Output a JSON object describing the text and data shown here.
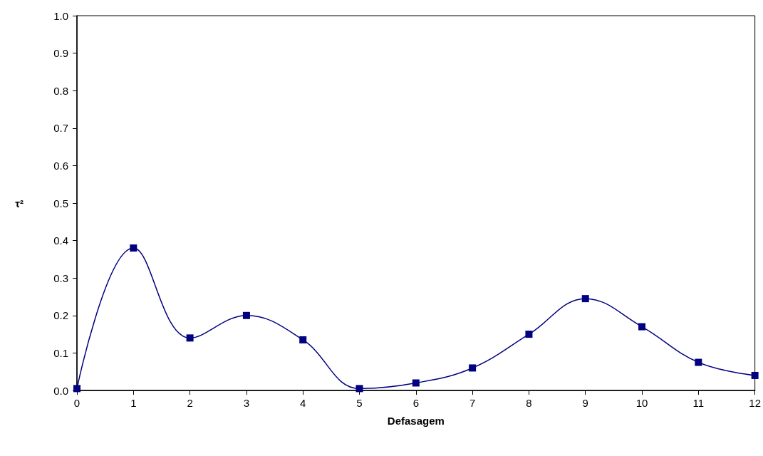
{
  "chart_data": {
    "type": "line",
    "xlabel": "Defasagem",
    "ylabel": "τ²",
    "x": [
      0,
      1,
      2,
      3,
      4,
      5,
      6,
      7,
      8,
      9,
      10,
      11,
      12
    ],
    "series": [
      {
        "color": "#000080",
        "values": [
          0.005,
          0.38,
          0.14,
          0.2,
          0.135,
          0.005,
          0.02,
          0.06,
          0.15,
          0.245,
          0.17,
          0.075,
          0.04
        ]
      }
    ],
    "xlim": [
      0,
      12
    ],
    "xticks": [
      0,
      1,
      2,
      3,
      4,
      5,
      6,
      7,
      8,
      9,
      10,
      11,
      12
    ],
    "ylim": [
      0,
      1
    ],
    "yticks": [
      {
        "value": 0,
        "label": "0.0"
      },
      0.1,
      0.2,
      0.3,
      0.4,
      0.5,
      0.6,
      0.7,
      0.8,
      0.9,
      {
        "value": 1,
        "label": "1.0"
      }
    ],
    "marker": "square"
  }
}
